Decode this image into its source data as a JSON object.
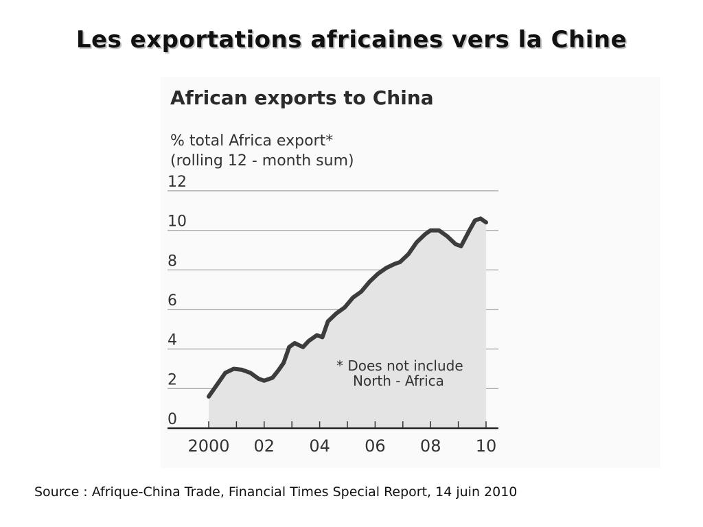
{
  "slide": {
    "title": "Les exportations africaines vers la Chine",
    "source": "Source : Afrique-China Trade, Financial Times Special Report, 14 juin 2010"
  },
  "chart_data": {
    "type": "area",
    "title": "African exports to China",
    "ylabel_lines": [
      "% total Africa export*",
      "(rolling 12 - month sum)"
    ],
    "ylim": [
      0,
      12
    ],
    "yticks": [
      0,
      2,
      4,
      6,
      8,
      10,
      12
    ],
    "xlim": [
      2000,
      2010
    ],
    "xticks": [
      {
        "x": 2000,
        "label": "2000"
      },
      {
        "x": 2002,
        "label": "02"
      },
      {
        "x": 2004,
        "label": "04"
      },
      {
        "x": 2006,
        "label": "06"
      },
      {
        "x": 2008,
        "label": "08"
      },
      {
        "x": 2010,
        "label": "10"
      }
    ],
    "grid": true,
    "footnote_lines": [
      "* Does not include",
      "North - Africa"
    ],
    "series": [
      {
        "x": [
          2000.0,
          2000.3,
          2000.6,
          2000.9,
          2001.2,
          2001.5,
          2001.8,
          2002.0,
          2002.3,
          2002.5,
          2002.7,
          2002.9,
          2003.1,
          2003.4,
          2003.6,
          2003.9,
          2004.1,
          2004.3,
          2004.6,
          2004.9,
          2005.2,
          2005.5,
          2005.8,
          2006.1,
          2006.4,
          2006.7,
          2006.9,
          2007.2,
          2007.5,
          2007.8,
          2008.0,
          2008.3,
          2008.6,
          2008.9,
          2009.1,
          2009.4,
          2009.6,
          2009.8,
          2010.0
        ],
        "y": [
          1.6,
          2.2,
          2.8,
          3.0,
          2.95,
          2.8,
          2.5,
          2.4,
          2.55,
          2.9,
          3.3,
          4.1,
          4.3,
          4.1,
          4.4,
          4.7,
          4.6,
          5.4,
          5.8,
          6.1,
          6.6,
          6.9,
          7.4,
          7.8,
          8.1,
          8.3,
          8.4,
          8.8,
          9.4,
          9.8,
          10.0,
          10.0,
          9.7,
          9.3,
          9.2,
          10.0,
          10.5,
          10.6,
          10.4
        ]
      }
    ]
  }
}
